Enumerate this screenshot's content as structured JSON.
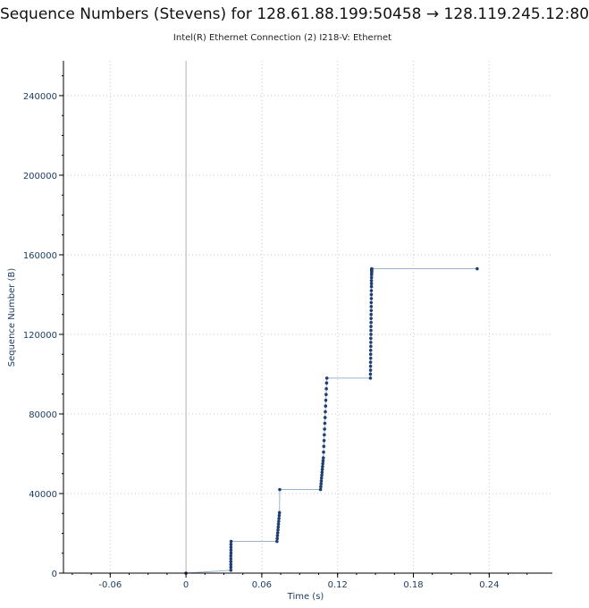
{
  "window": {
    "title": "Sequence Numbers (Stevens) for 128.61.88.199:50458 → 128.119.245.12:80",
    "subtitle": "Intel(R) Ethernet Connection (2) I218-V: Ethernet"
  },
  "chart_data": {
    "type": "scatter",
    "title": "Sequence Numbers (Stevens) for 128.61.88.199:50458 → 128.119.245.12:80",
    "subtitle": "Intel(R) Ethernet Connection (2) I218-V: Ethernet",
    "xlabel": "Time (s)",
    "ylabel": "Sequence Number (B)",
    "xlim": [
      -0.097,
      0.29
    ],
    "ylim": [
      0,
      257500
    ],
    "xticks": [
      -0.06,
      0,
      0.06,
      0.12,
      0.18,
      0.24
    ],
    "xtick_labels": [
      "-0.06",
      "0",
      "0.06",
      "0.12",
      "0.18",
      "0.24"
    ],
    "yticks": [
      0,
      40000,
      80000,
      120000,
      160000,
      200000,
      240000
    ],
    "ytick_labels": [
      "0",
      "40000",
      "80000",
      "120000",
      "160000",
      "200000",
      "240000"
    ],
    "grid": true,
    "colors": {
      "points": "#1f3f73",
      "line": "#9ab3cf",
      "grid": "#c8c8c8",
      "axis": "#000000",
      "zero_line": "#b0b0b0"
    },
    "series": [
      {
        "x": [
          0.0,
          0.0355,
          0.0355,
          0.0355,
          0.0355,
          0.0355,
          0.0355,
          0.0356,
          0.0356,
          0.0356,
          0.0356,
          0.0357,
          0.072,
          0.0722,
          0.0724,
          0.0726,
          0.0728,
          0.073,
          0.0732,
          0.0734,
          0.0736,
          0.0738,
          0.074,
          0.0742,
          0.1065,
          0.1067,
          0.1069,
          0.1071,
          0.1073,
          0.1075,
          0.1077,
          0.1079,
          0.1081,
          0.1083,
          0.1085,
          0.1087,
          0.1089,
          0.1091,
          0.1093,
          0.1095,
          0.1097,
          0.1099,
          0.1101,
          0.1103,
          0.1105,
          0.1107,
          0.1109,
          0.1111,
          0.1113,
          0.1115,
          0.146,
          0.146,
          0.1461,
          0.1461,
          0.1461,
          0.1462,
          0.1462,
          0.1462,
          0.1463,
          0.1463,
          0.1463,
          0.1464,
          0.1464,
          0.1464,
          0.1465,
          0.1465,
          0.1465,
          0.1466,
          0.1466,
          0.1466,
          0.1467,
          0.1467,
          0.1467,
          0.1468,
          0.1468,
          0.1468,
          0.1469,
          0.1469,
          0.147,
          0.147,
          0.147,
          0.147,
          0.147,
          0.147,
          0.147,
          0.2305
        ],
        "y": [
          0,
          1448,
          2896,
          4344,
          5792,
          7240,
          8688,
          10136,
          11584,
          13032,
          14480,
          15928,
          15928,
          17376,
          18824,
          20272,
          21720,
          23168,
          24616,
          26064,
          27512,
          28960,
          30408,
          42000,
          42000,
          43448,
          44896,
          46344,
          47792,
          49240,
          50688,
          52136,
          53584,
          55032,
          56480,
          57928,
          60824,
          63720,
          66616,
          69512,
          72408,
          75304,
          78200,
          81096,
          83992,
          86888,
          89784,
          92680,
          95576,
          98000,
          98000,
          100000,
          102000,
          104000,
          106000,
          108000,
          110000,
          112000,
          114000,
          116000,
          118000,
          120000,
          122000,
          124000,
          126000,
          128000,
          130000,
          132000,
          134000,
          136000,
          138000,
          140000,
          142000,
          144000,
          145500,
          147000,
          148500,
          150000,
          150800,
          151600,
          152000,
          152400,
          152600,
          152800,
          153000,
          153000
        ]
      }
    ]
  }
}
